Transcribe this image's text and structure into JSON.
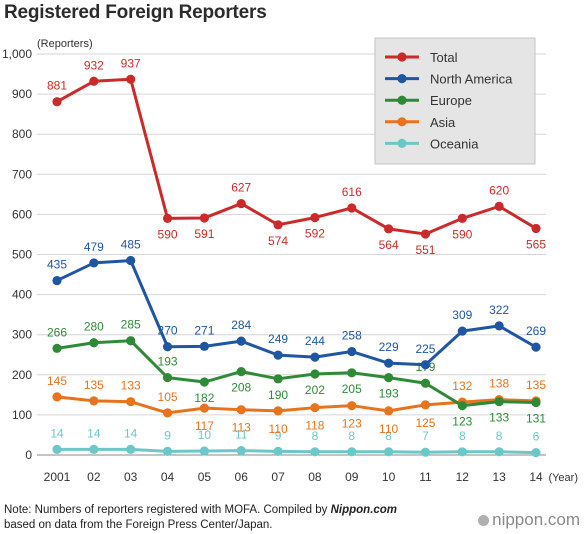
{
  "title": "Registered Foreign Reporters",
  "note": {
    "line1_prefix": "Note: Numbers of reporters registered with MOFA. Compiled by ",
    "line1_brand": "Nippon.com",
    "line2": "based on data from the Foreign Press Center/Japan."
  },
  "logo_text": "nippon.com",
  "chart_data": {
    "type": "line",
    "ylabel": "(Reporters)",
    "xlabel": "(Year)",
    "ylim": [
      0,
      1000
    ],
    "yticks": [
      0,
      100,
      200,
      300,
      400,
      500,
      600,
      700,
      800,
      900,
      1000
    ],
    "ytick_labels": [
      "0",
      "100",
      "200",
      "300",
      "400",
      "500",
      "600",
      "700",
      "800",
      "900",
      "1,000"
    ],
    "categories": [
      "2001",
      "02",
      "03",
      "04",
      "05",
      "06",
      "07",
      "08",
      "09",
      "10",
      "11",
      "12",
      "13",
      "14"
    ],
    "grid": true,
    "legend": "top-right",
    "series": [
      {
        "name": "Total",
        "color": "#cc2a2a",
        "values": [
          881,
          932,
          937,
          590,
          591,
          627,
          574,
          592,
          616,
          564,
          551,
          590,
          620,
          565
        ]
      },
      {
        "name": "North America",
        "color": "#1f56a3",
        "values": [
          435,
          479,
          485,
          270,
          271,
          284,
          249,
          244,
          258,
          229,
          225,
          309,
          322,
          269
        ]
      },
      {
        "name": "Europe",
        "color": "#2f8a38",
        "values": [
          266,
          280,
          285,
          193,
          182,
          208,
          190,
          202,
          205,
          193,
          179,
          123,
          133,
          131
        ]
      },
      {
        "name": "Asia",
        "color": "#e8731c",
        "values": [
          145,
          135,
          133,
          105,
          117,
          113,
          110,
          118,
          123,
          110,
          125,
          132,
          138,
          135
        ]
      },
      {
        "name": "Oceania",
        "color": "#6cc7c9",
        "values": [
          14,
          14,
          14,
          9,
          10,
          11,
          9,
          8,
          8,
          8,
          7,
          8,
          8,
          6
        ]
      }
    ]
  }
}
